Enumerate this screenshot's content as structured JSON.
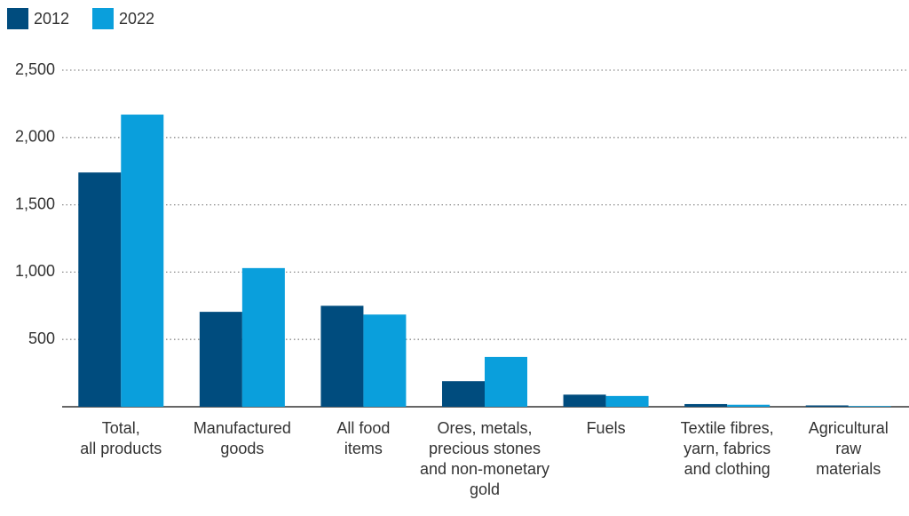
{
  "chart_data": {
    "type": "bar",
    "categories": [
      "Total,\nall products",
      "Manufactured\ngoods",
      "All food\nitems",
      "Ores, metals,\nprecious stones\nand non-monetary\ngold",
      "Fuels",
      "Textile fibres,\nyarn, fabrics\nand clothing",
      "Agricultural\nraw\nmaterials"
    ],
    "series": [
      {
        "name": "2012",
        "color": "#004c7e",
        "values": [
          1740,
          705,
          750,
          190,
          90,
          20,
          10
        ]
      },
      {
        "name": "2022",
        "color": "#0a9fdc",
        "values": [
          2170,
          1030,
          685,
          370,
          80,
          15,
          5
        ]
      }
    ],
    "ylim": [
      0,
      2500
    ],
    "yticks": [
      500,
      {
        "value": 1000,
        "label": "1,000"
      },
      {
        "value": 1500,
        "label": "1,500"
      },
      {
        "value": 2000,
        "label": "2,000"
      },
      {
        "value": 2500,
        "label": "2,500"
      }
    ],
    "grid": true,
    "legend": "top-left"
  }
}
